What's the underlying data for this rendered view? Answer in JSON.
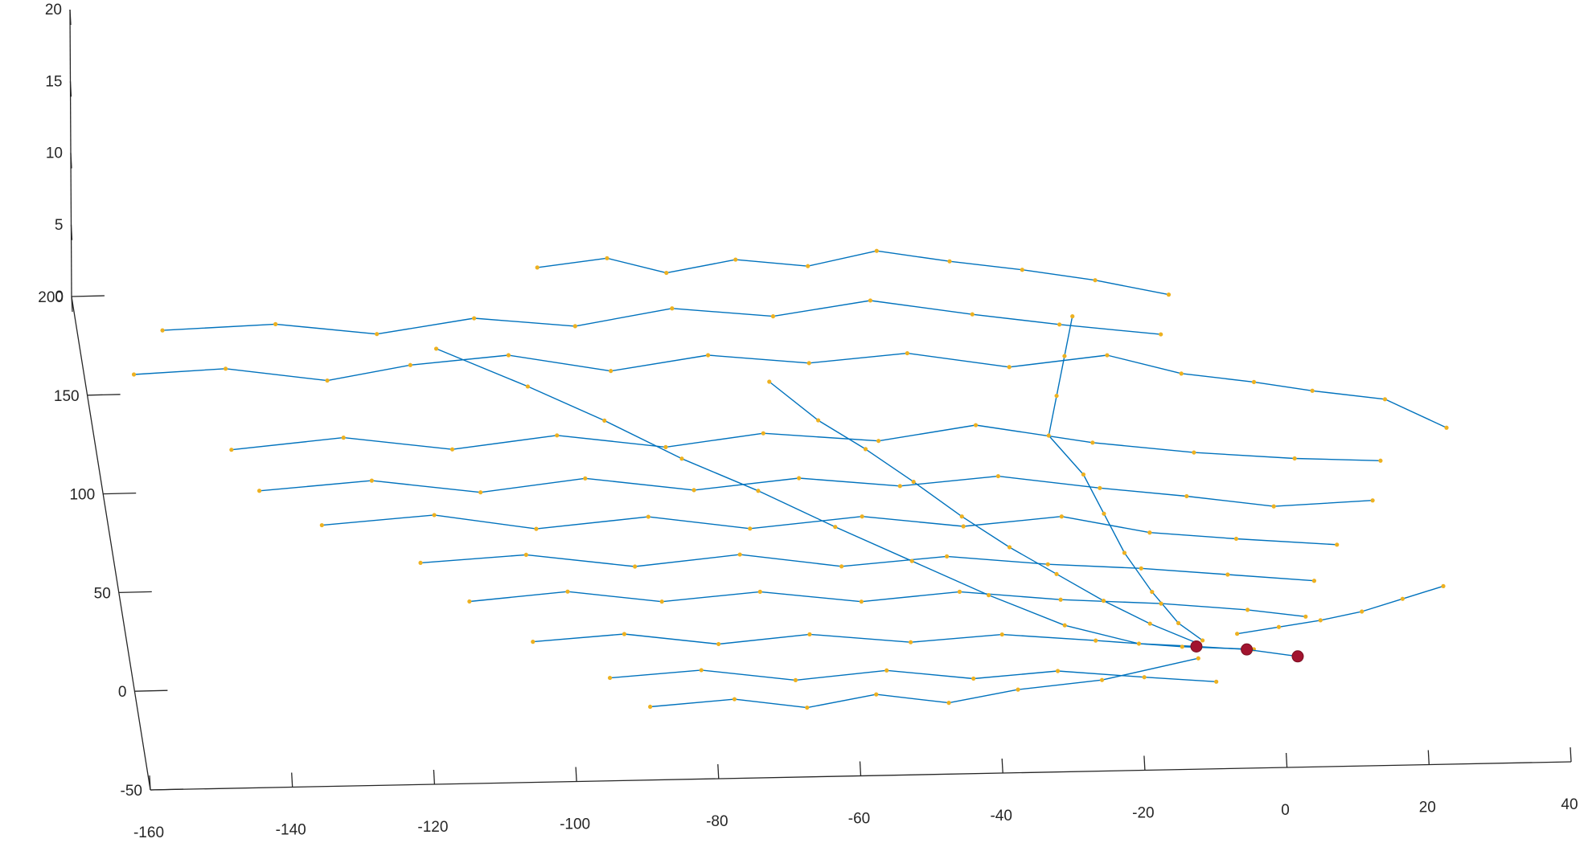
{
  "chart_data": {
    "type": "line",
    "subtype": "3d-network-graph",
    "title": "",
    "xlabel": "",
    "ylabel": "",
    "zlabel": "",
    "xlim": [
      -160,
      40
    ],
    "ylim": [
      -50,
      200
    ],
    "zlim": [
      0,
      20
    ],
    "x_ticks": [
      "-160",
      "-140",
      "-120",
      "-100",
      "-80",
      "-60",
      "-40",
      "-20",
      "0",
      "20",
      "40"
    ],
    "y_ticks": [
      "-50",
      "0",
      "50",
      "100",
      "150",
      "200"
    ],
    "z_ticks": [
      "0",
      "5",
      "10",
      "15",
      "20"
    ],
    "grid": false,
    "legend": "none",
    "colors": {
      "edges": "#0072BD",
      "nodes": "#EDB120",
      "highlight_nodes": "#A2142F",
      "axes": "#262626"
    },
    "series": [
      {
        "name": "",
        "points": [
          [
            -153,
            160
          ],
          [
            -140,
            162
          ],
          [
            -126,
            155
          ],
          [
            -114,
            162
          ],
          [
            -100,
            166
          ],
          [
            -86,
            157
          ],
          [
            -72,
            164
          ],
          [
            -58,
            159
          ],
          [
            -44,
            163
          ],
          [
            -30,
            155
          ],
          [
            -16,
            160
          ],
          [
            -6,
            150
          ],
          [
            4,
            145
          ],
          [
            12,
            140
          ],
          [
            22,
            135
          ],
          [
            30,
            120
          ]
        ]
      },
      {
        "name": "",
        "points": [
          [
            -148,
            182
          ],
          [
            -132,
            184
          ],
          [
            -118,
            178
          ],
          [
            -104,
            185
          ],
          [
            -90,
            180
          ],
          [
            -76,
            188
          ],
          [
            -62,
            183
          ],
          [
            -48,
            190
          ],
          [
            -34,
            182
          ],
          [
            -22,
            176
          ],
          [
            -8,
            170
          ]
        ]
      },
      {
        "name": "",
        "points": [
          [
            -141,
            121
          ],
          [
            -125,
            126
          ],
          [
            -110,
            119
          ],
          [
            -95,
            125
          ],
          [
            -80,
            118
          ],
          [
            -66,
            124
          ],
          [
            -50,
            119
          ],
          [
            -36,
            126
          ],
          [
            -20,
            116
          ],
          [
            -6,
            110
          ],
          [
            8,
            106
          ],
          [
            20,
            104
          ]
        ]
      },
      {
        "name": "",
        "points": [
          [
            -138,
            100
          ],
          [
            -122,
            104
          ],
          [
            -107,
            97
          ],
          [
            -92,
            103
          ],
          [
            -77,
            96
          ],
          [
            -62,
            101
          ],
          [
            -48,
            96
          ],
          [
            -34,
            100
          ],
          [
            -20,
            93
          ],
          [
            -8,
            88
          ],
          [
            4,
            82
          ],
          [
            18,
            84
          ]
        ]
      },
      {
        "name": "",
        "points": [
          [
            -130,
            82
          ],
          [
            -114,
            86
          ],
          [
            -100,
            78
          ],
          [
            -84,
            83
          ],
          [
            -70,
            76
          ],
          [
            -54,
            81
          ],
          [
            -40,
            75
          ],
          [
            -26,
            79
          ],
          [
            -14,
            70
          ],
          [
            -2,
            66
          ],
          [
            12,
            62
          ]
        ]
      },
      {
        "name": "",
        "points": [
          [
            -117,
            62
          ],
          [
            -102,
            65
          ],
          [
            -87,
            58
          ],
          [
            -72,
            63
          ],
          [
            -58,
            56
          ],
          [
            -43,
            60
          ],
          [
            -29,
            55
          ],
          [
            -16,
            52
          ],
          [
            -4,
            48
          ],
          [
            8,
            44
          ]
        ]
      },
      {
        "name": "",
        "points": [
          [
            -111,
            42
          ],
          [
            -97,
            46
          ],
          [
            -84,
            40
          ],
          [
            -70,
            44
          ],
          [
            -56,
            38
          ],
          [
            -42,
            42
          ],
          [
            -28,
            37
          ],
          [
            -14,
            34
          ],
          [
            -2,
            30
          ],
          [
            6,
            26
          ]
        ]
      },
      {
        "name": "",
        "points": [
          [
            -103,
            21
          ],
          [
            -90,
            24
          ],
          [
            -77,
            18
          ],
          [
            -64,
            22
          ],
          [
            -50,
            17
          ],
          [
            -37,
            20
          ],
          [
            -24,
            16
          ],
          [
            -12,
            12
          ],
          [
            -2,
            10
          ]
        ]
      },
      {
        "name": "",
        "points": [
          [
            -93,
            2
          ],
          [
            -80,
            5
          ],
          [
            -67,
            -1
          ],
          [
            -54,
            3
          ],
          [
            -42,
            -2
          ],
          [
            -30,
            1
          ],
          [
            -18,
            -3
          ],
          [
            -8,
            -6
          ]
        ]
      },
      {
        "name": "",
        "points": [
          [
            -88,
            -13
          ],
          [
            -76,
            -10
          ],
          [
            -66,
            -15
          ],
          [
            -56,
            -9
          ],
          [
            -46,
            -14
          ],
          [
            -36,
            -8
          ],
          [
            -24,
            -4
          ],
          [
            -10,
            6
          ]
        ]
      },
      {
        "name": "",
        "points": [
          [
            -94,
            210
          ],
          [
            -84,
            214
          ],
          [
            -76,
            206
          ],
          [
            -66,
            212
          ],
          [
            -56,
            208
          ],
          [
            -46,
            215
          ],
          [
            -36,
            209
          ],
          [
            -26,
            204
          ],
          [
            -16,
            198
          ],
          [
            -6,
            190
          ]
        ]
      },
      {
        "name": "",
        "points": [
          [
            -64,
            150
          ],
          [
            -58,
            130
          ],
          [
            -52,
            115
          ],
          [
            -46,
            98
          ],
          [
            -40,
            80
          ],
          [
            -34,
            64
          ],
          [
            -28,
            50
          ],
          [
            -22,
            36
          ],
          [
            -16,
            24
          ],
          [
            -10,
            14
          ]
        ]
      },
      {
        "name": "",
        "points": [
          [
            -110,
            170
          ],
          [
            -98,
            150
          ],
          [
            -88,
            132
          ],
          [
            -78,
            112
          ],
          [
            -68,
            95
          ],
          [
            -58,
            76
          ],
          [
            -48,
            58
          ],
          [
            -38,
            40
          ],
          [
            -28,
            24
          ],
          [
            -18,
            14
          ],
          [
            -10,
            12
          ]
        ]
      },
      {
        "name": "",
        "points": [
          [
            -20,
            180
          ],
          [
            -22,
            160
          ],
          [
            -24,
            140
          ],
          [
            -26,
            120
          ],
          [
            -22,
            100
          ],
          [
            -20,
            80
          ],
          [
            -18,
            60
          ],
          [
            -15,
            40
          ],
          [
            -12,
            24
          ],
          [
            -9,
            15
          ]
        ]
      },
      {
        "name": "",
        "points": [
          [
            -4,
            18
          ],
          [
            2,
            21
          ],
          [
            8,
            24
          ],
          [
            14,
            28
          ],
          [
            20,
            34
          ],
          [
            26,
            40
          ]
        ]
      }
    ],
    "highlight_points": [
      [
        -10,
        12
      ],
      [
        -3,
        10
      ],
      [
        4,
        6
      ]
    ]
  }
}
